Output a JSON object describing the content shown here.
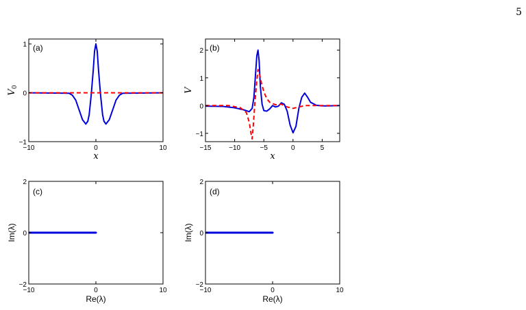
{
  "page_number": "5",
  "chart_data": [
    {
      "panel": "(a)",
      "type": "line",
      "xlabel": "x",
      "ylabel": "V",
      "ylabel_sub": "0",
      "xlim": [
        -10,
        10
      ],
      "ylim": [
        -1,
        1.1
      ],
      "xticks": [
        -10,
        0,
        10
      ],
      "yticks": [
        -1,
        0,
        1
      ],
      "grid": false,
      "series": [
        {
          "color": "#0000dd",
          "style": "solid",
          "x": [
            -10,
            -4,
            -3.5,
            -3,
            -2.5,
            -2,
            -1.5,
            -1.2,
            -1,
            -0.7,
            -0.4,
            -0.2,
            0,
            0.2,
            0.4,
            0.7,
            1,
            1.2,
            1.5,
            2,
            2.5,
            3,
            3.5,
            4,
            10
          ],
          "y": [
            0,
            -0.01,
            -0.05,
            -0.15,
            -0.35,
            -0.55,
            -0.64,
            -0.58,
            -0.45,
            -0.05,
            0.45,
            0.85,
            1.0,
            0.85,
            0.45,
            -0.05,
            -0.45,
            -0.58,
            -0.64,
            -0.55,
            -0.35,
            -0.15,
            -0.05,
            -0.01,
            0
          ]
        },
        {
          "color": "#ff0000",
          "style": "dashed",
          "x": [
            -10,
            10
          ],
          "y": [
            0,
            0
          ]
        }
      ]
    },
    {
      "panel": "(b)",
      "type": "line",
      "xlabel": "x",
      "ylabel": "V",
      "xlim": [
        -15,
        8
      ],
      "ylim": [
        -1.3,
        2.4
      ],
      "xticks": [
        -15,
        -10,
        -5,
        0,
        5
      ],
      "yticks": [
        -1,
        0,
        1,
        2
      ],
      "grid": false,
      "series": [
        {
          "color": "#0000dd",
          "style": "solid",
          "x": [
            -15,
            -12,
            -10,
            -8.5,
            -7.5,
            -7,
            -6.7,
            -6.4,
            -6.2,
            -6.0,
            -5.8,
            -5.6,
            -5.3,
            -5,
            -4.5,
            -4,
            -3.5,
            -3,
            -2.5,
            -2,
            -1.5,
            -1,
            -0.5,
            0,
            0.5,
            1,
            1.5,
            2,
            2.5,
            3,
            4,
            5,
            6,
            8
          ],
          "y": [
            -0.02,
            -0.03,
            -0.08,
            -0.15,
            -0.22,
            -0.1,
            0.3,
            1.2,
            1.8,
            2.0,
            1.6,
            0.7,
            0.05,
            -0.18,
            -0.2,
            -0.12,
            0.0,
            -0.05,
            -0.02,
            0.1,
            0.05,
            -0.2,
            -0.7,
            -0.98,
            -0.75,
            -0.1,
            0.3,
            0.45,
            0.3,
            0.12,
            0.01,
            -0.01,
            -0.01,
            0
          ]
        },
        {
          "color": "#ff0000",
          "style": "dashed",
          "x": [
            -15,
            -11,
            -9,
            -8,
            -7.5,
            -7.2,
            -7.0,
            -6.8,
            -6.5,
            -6.2,
            -6.0,
            -5.7,
            -5.4,
            -5,
            -4.5,
            -4,
            -3,
            -2,
            -1,
            0,
            1,
            2,
            4,
            8
          ],
          "y": [
            0.0,
            0.0,
            -0.08,
            -0.25,
            -0.6,
            -1.0,
            -1.2,
            -0.7,
            0.2,
            0.9,
            1.3,
            1.1,
            0.8,
            0.5,
            0.25,
            0.12,
            0.03,
            0.05,
            -0.05,
            -0.1,
            -0.05,
            0.0,
            0.0,
            0.0
          ]
        }
      ]
    },
    {
      "panel": "(c)",
      "type": "line",
      "xlabel": "Re(λ)",
      "ylabel": "Im(λ)",
      "xlim": [
        -10,
        10
      ],
      "ylim": [
        -2,
        2
      ],
      "xticks": [
        -10,
        0,
        10
      ],
      "yticks": [
        -2,
        0,
        2
      ],
      "grid": false,
      "series": [
        {
          "color": "#0000dd",
          "style": "solid-thick",
          "x": [
            -10,
            0
          ],
          "y": [
            0,
            0
          ]
        }
      ]
    },
    {
      "panel": "(d)",
      "type": "line",
      "xlabel": "Re(λ)",
      "ylabel": "Im(λ)",
      "xlim": [
        -10,
        10
      ],
      "ylim": [
        -2,
        2
      ],
      "xticks": [
        -10,
        0,
        10
      ],
      "yticks": [
        -2,
        0,
        2
      ],
      "grid": false,
      "series": [
        {
          "color": "#0000dd",
          "style": "solid-thick",
          "x": [
            -10,
            0
          ],
          "y": [
            0,
            0
          ]
        }
      ]
    }
  ]
}
